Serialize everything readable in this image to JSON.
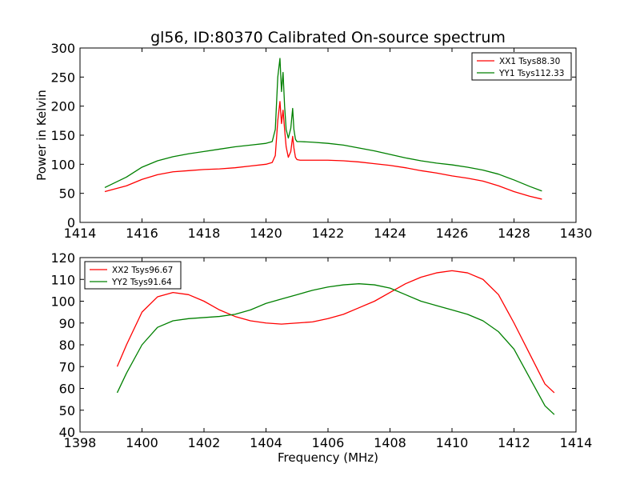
{
  "figure_title": "gl56, ID:80370 Calibrated On-source spectrum",
  "colors": {
    "xx": "#ff0000",
    "yy": "#008000"
  },
  "chart_data": [
    {
      "type": "line",
      "title": "gl56, ID:80370 Calibrated On-source spectrum",
      "xlabel": "",
      "ylabel": "Power in Kelvin",
      "xlim": [
        1414,
        1430
      ],
      "ylim": [
        0,
        300
      ],
      "xticks": [
        1414,
        1416,
        1418,
        1420,
        1422,
        1424,
        1426,
        1428,
        1430
      ],
      "yticks": [
        0,
        50,
        100,
        150,
        200,
        250,
        300
      ],
      "legend_position": "top-right",
      "grid": false,
      "series": [
        {
          "name": "XX1 Tsys88.30",
          "color": "#ff0000",
          "x": [
            1414.8,
            1415.5,
            1416.0,
            1416.5,
            1417.0,
            1417.5,
            1418.0,
            1418.5,
            1419.0,
            1419.5,
            1420.0,
            1420.2,
            1420.3,
            1420.38,
            1420.45,
            1420.5,
            1420.55,
            1420.6,
            1420.65,
            1420.72,
            1420.8,
            1420.86,
            1420.9,
            1420.95,
            1421.0,
            1421.1,
            1421.5,
            1422.0,
            1422.5,
            1423.0,
            1423.5,
            1424.0,
            1424.5,
            1425.0,
            1425.5,
            1426.0,
            1426.5,
            1427.0,
            1427.5,
            1428.0,
            1428.5,
            1428.9
          ],
          "y": [
            53,
            63,
            74,
            82,
            87,
            89,
            91,
            92,
            94,
            97,
            100,
            103,
            115,
            175,
            208,
            170,
            193,
            160,
            130,
            112,
            122,
            148,
            128,
            112,
            108,
            107,
            107,
            107,
            106,
            104,
            101,
            98,
            94,
            89,
            85,
            80,
            76,
            71,
            63,
            53,
            45,
            40
          ]
        },
        {
          "name": "YY1 Tsys112.33",
          "color": "#008000",
          "x": [
            1414.8,
            1415.5,
            1416.0,
            1416.5,
            1417.0,
            1417.5,
            1418.0,
            1418.5,
            1419.0,
            1419.5,
            1420.0,
            1420.2,
            1420.3,
            1420.38,
            1420.45,
            1420.5,
            1420.55,
            1420.6,
            1420.65,
            1420.72,
            1420.8,
            1420.86,
            1420.9,
            1420.95,
            1421.0,
            1421.1,
            1421.5,
            1422.0,
            1422.5,
            1423.0,
            1423.5,
            1424.0,
            1424.5,
            1425.0,
            1425.5,
            1426.0,
            1426.5,
            1427.0,
            1427.5,
            1428.0,
            1428.5,
            1428.9
          ],
          "y": [
            60,
            78,
            95,
            106,
            113,
            118,
            122,
            126,
            130,
            133,
            136,
            139,
            160,
            250,
            282,
            225,
            258,
            200,
            160,
            145,
            162,
            196,
            160,
            143,
            139,
            139,
            138,
            136,
            133,
            128,
            123,
            117,
            111,
            106,
            102,
            99,
            95,
            90,
            83,
            73,
            62,
            54
          ]
        }
      ]
    },
    {
      "type": "line",
      "title": "",
      "xlabel": "Frequency (MHz)",
      "ylabel": "",
      "xlim": [
        1398,
        1414
      ],
      "ylim": [
        40,
        120
      ],
      "xticks": [
        1398,
        1400,
        1402,
        1404,
        1406,
        1408,
        1410,
        1412,
        1414
      ],
      "yticks": [
        40,
        50,
        60,
        70,
        80,
        90,
        100,
        110,
        120
      ],
      "legend_position": "top-left",
      "grid": false,
      "series": [
        {
          "name": "XX2 Tsys96.67",
          "color": "#ff0000",
          "x": [
            1399.2,
            1399.5,
            1400.0,
            1400.5,
            1401.0,
            1401.5,
            1402.0,
            1402.5,
            1403.0,
            1403.5,
            1404.0,
            1404.5,
            1405.0,
            1405.5,
            1406.0,
            1406.5,
            1407.0,
            1407.5,
            1408.0,
            1408.5,
            1409.0,
            1409.5,
            1410.0,
            1410.5,
            1411.0,
            1411.5,
            1412.0,
            1412.5,
            1413.0,
            1413.3
          ],
          "y": [
            70,
            80,
            95,
            102,
            104,
            103,
            100,
            96,
            93,
            91,
            90,
            89.5,
            90,
            90.5,
            92,
            94,
            97,
            100,
            104,
            108,
            111,
            113,
            114,
            113,
            110,
            103,
            90,
            76,
            62,
            58
          ]
        },
        {
          "name": "YY2 Tsys91.64",
          "color": "#008000",
          "x": [
            1399.2,
            1399.5,
            1400.0,
            1400.5,
            1401.0,
            1401.5,
            1402.0,
            1402.5,
            1403.0,
            1403.5,
            1404.0,
            1404.5,
            1405.0,
            1405.5,
            1406.0,
            1406.5,
            1407.0,
            1407.5,
            1408.0,
            1408.5,
            1409.0,
            1409.5,
            1410.0,
            1410.5,
            1411.0,
            1411.5,
            1412.0,
            1412.5,
            1413.0,
            1413.3
          ],
          "y": [
            58,
            67,
            80,
            88,
            91,
            92,
            92.5,
            93,
            94,
            96,
            99,
            101,
            103,
            105,
            106.5,
            107.5,
            108,
            107.5,
            106,
            103,
            100,
            98,
            96,
            94,
            91,
            86,
            78,
            65,
            52,
            48
          ]
        }
      ]
    }
  ]
}
